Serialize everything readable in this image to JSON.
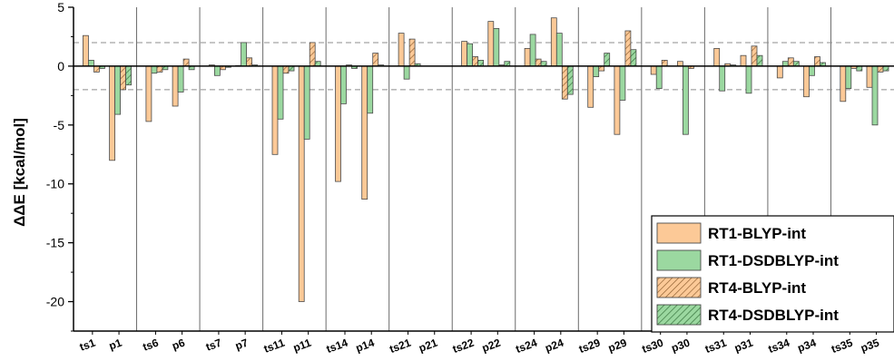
{
  "chart_data": {
    "type": "bar",
    "ylabel": "ΔΔE [kcal/mol]",
    "ylim": [
      -22.5,
      5
    ],
    "yticks": [
      5,
      0,
      -5,
      -10,
      -15,
      -20
    ],
    "reference_lines": [
      2,
      -2
    ],
    "legend_position": "bottom-right",
    "groups": [
      [
        "ts1",
        "p1"
      ],
      [
        "ts6",
        "p6"
      ],
      [
        "ts7",
        "p7"
      ],
      [
        "ts11",
        "p11"
      ],
      [
        "ts14",
        "p14"
      ],
      [
        "ts21",
        "p21"
      ],
      [
        "ts22",
        "p22"
      ],
      [
        "ts24",
        "p24"
      ],
      [
        "ts29",
        "p29"
      ],
      [
        "ts30",
        "p30"
      ],
      [
        "ts31",
        "p31"
      ],
      [
        "ts34",
        "p34"
      ],
      [
        "ts35",
        "p35"
      ]
    ],
    "categories": [
      "ts1",
      "p1",
      "ts6",
      "p6",
      "ts7",
      "p7",
      "ts11",
      "p11",
      "ts14",
      "p14",
      "ts21",
      "p21",
      "ts22",
      "p22",
      "ts24",
      "p24",
      "ts29",
      "p29",
      "ts30",
      "p30",
      "ts31",
      "p31",
      "ts34",
      "p34",
      "ts35",
      "p35"
    ],
    "series": [
      {
        "name": "RT1-BLYP-int",
        "fill": "#fcc997",
        "hatch": false,
        "values": [
          2.6,
          -8.0,
          -4.7,
          -3.4,
          0.1,
          0.05,
          -7.5,
          -20.0,
          -9.8,
          -11.3,
          2.8,
          0.0,
          2.1,
          3.8,
          1.5,
          4.1,
          -3.5,
          -5.8,
          -0.7,
          0.4,
          1.5,
          0.9,
          -1.0,
          -2.6,
          -3.0,
          -1.8
        ]
      },
      {
        "name": "RT1-DSDBLYP-int",
        "fill": "#9bd8a0",
        "hatch": false,
        "values": [
          0.5,
          -4.1,
          -0.6,
          -2.2,
          -0.8,
          2.0,
          -4.5,
          -6.2,
          -3.2,
          -4.0,
          -1.1,
          0.0,
          1.9,
          3.2,
          2.7,
          2.8,
          -0.9,
          -2.9,
          -1.9,
          -5.8,
          -2.1,
          -2.3,
          0.4,
          -0.8,
          -1.9,
          -5.0
        ]
      },
      {
        "name": "RT4-BLYP-int",
        "fill": "#fcc997",
        "hatch": true,
        "values": [
          -0.5,
          -2.0,
          -0.5,
          0.6,
          -0.3,
          0.7,
          -0.6,
          2.0,
          0.1,
          1.1,
          2.3,
          0.0,
          0.8,
          0.1,
          0.6,
          -2.8,
          -0.4,
          3.0,
          0.5,
          -0.2,
          0.2,
          1.7,
          0.7,
          0.8,
          -0.2,
          -0.5
        ]
      },
      {
        "name": "RT4-DSDBLYP-int",
        "fill": "#9bd8a0",
        "hatch": true,
        "values": [
          -0.2,
          -1.6,
          -0.3,
          -0.3,
          -0.1,
          0.1,
          -0.4,
          0.4,
          -0.2,
          0.1,
          0.2,
          0.0,
          0.5,
          0.4,
          0.4,
          -2.4,
          1.1,
          1.4,
          0.0,
          0.0,
          0.1,
          0.9,
          0.4,
          0.3,
          -0.4,
          -0.4
        ]
      }
    ]
  }
}
